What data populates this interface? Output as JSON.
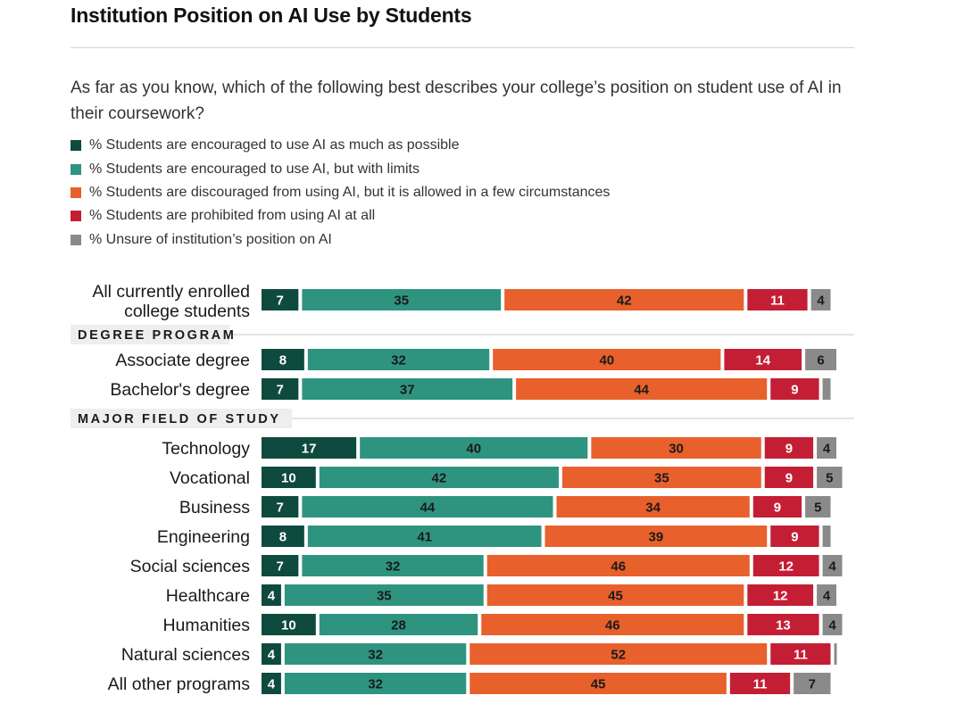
{
  "header": {
    "title": "Institution Position on AI Use by Students",
    "question": "As far as you know, which of the following best describes your college’s position on student use of AI in their coursework?"
  },
  "chart_data": {
    "type": "bar",
    "orientation": "horizontal",
    "stacked": true,
    "title": "Institution Position on AI Use by Students",
    "legend": [
      {
        "name": "% Students are encouraged to use AI as much as possible",
        "color": "#0f4a3e",
        "label_color": "#ffffff"
      },
      {
        "name": "% Students are encouraged to use AI, but with limits",
        "color": "#2e9480",
        "label_color": "#1a1a1a"
      },
      {
        "name": "% Students are discouraged from using AI, but it is allowed in a few circumstances",
        "color": "#e8602c",
        "label_color": "#1a1a1a"
      },
      {
        "name": "% Students are prohibited from using AI at all",
        "color": "#c41e35",
        "label_color": "#ffffff"
      },
      {
        "name": "% Unsure of institution’s position on AI",
        "color": "#8a8a8a",
        "label_color": "#1a1a1a"
      }
    ],
    "rows": [
      {
        "kind": "bar",
        "label_lines": [
          "All currently enrolled",
          "college students"
        ],
        "values": [
          7,
          35,
          42,
          11,
          4
        ],
        "labels": [
          "7",
          "35",
          "42",
          "11",
          "4"
        ]
      },
      {
        "kind": "section",
        "label": "DEGREE PROGRAM"
      },
      {
        "kind": "bar",
        "label_lines": [
          "Associate degree"
        ],
        "values": [
          8,
          32,
          40,
          14,
          6
        ],
        "labels": [
          "8",
          "32",
          "40",
          "14",
          "6"
        ]
      },
      {
        "kind": "bar",
        "label_lines": [
          "Bachelor's degree"
        ],
        "values": [
          7,
          37,
          44,
          9,
          2
        ],
        "labels": [
          "7",
          "37",
          "44",
          "9",
          ""
        ]
      },
      {
        "kind": "section",
        "label": "MAJOR FIELD OF STUDY"
      },
      {
        "kind": "bar",
        "label_lines": [
          "Technology"
        ],
        "values": [
          17,
          40,
          30,
          9,
          4
        ],
        "labels": [
          "17",
          "40",
          "30",
          "9",
          "4"
        ]
      },
      {
        "kind": "bar",
        "label_lines": [
          "Vocational"
        ],
        "values": [
          10,
          42,
          35,
          9,
          5
        ],
        "labels": [
          "10",
          "42",
          "35",
          "9",
          "5"
        ]
      },
      {
        "kind": "bar",
        "label_lines": [
          "Business"
        ],
        "values": [
          7,
          44,
          34,
          9,
          5
        ],
        "labels": [
          "7",
          "44",
          "34",
          "9",
          "5"
        ]
      },
      {
        "kind": "bar",
        "label_lines": [
          "Engineering"
        ],
        "values": [
          8,
          41,
          39,
          9,
          2
        ],
        "labels": [
          "8",
          "41",
          "39",
          "9",
          ""
        ]
      },
      {
        "kind": "bar",
        "label_lines": [
          "Social sciences"
        ],
        "values": [
          7,
          32,
          46,
          12,
          4
        ],
        "labels": [
          "7",
          "32",
          "46",
          "12",
          "4"
        ]
      },
      {
        "kind": "bar",
        "label_lines": [
          "Healthcare"
        ],
        "values": [
          4,
          35,
          45,
          12,
          4
        ],
        "labels": [
          "4",
          "35",
          "45",
          "12",
          "4"
        ]
      },
      {
        "kind": "bar",
        "label_lines": [
          "Humanities"
        ],
        "values": [
          10,
          28,
          46,
          13,
          4
        ],
        "labels": [
          "10",
          "28",
          "46",
          "13",
          "4"
        ]
      },
      {
        "kind": "bar",
        "label_lines": [
          "Natural sciences"
        ],
        "values": [
          4,
          32,
          52,
          11,
          1
        ],
        "labels": [
          "4",
          "32",
          "52",
          "11",
          ""
        ]
      },
      {
        "kind": "bar",
        "label_lines": [
          "All other programs"
        ],
        "values": [
          4,
          32,
          45,
          11,
          7
        ],
        "labels": [
          "4",
          "32",
          "45",
          "11",
          "7"
        ]
      }
    ]
  }
}
